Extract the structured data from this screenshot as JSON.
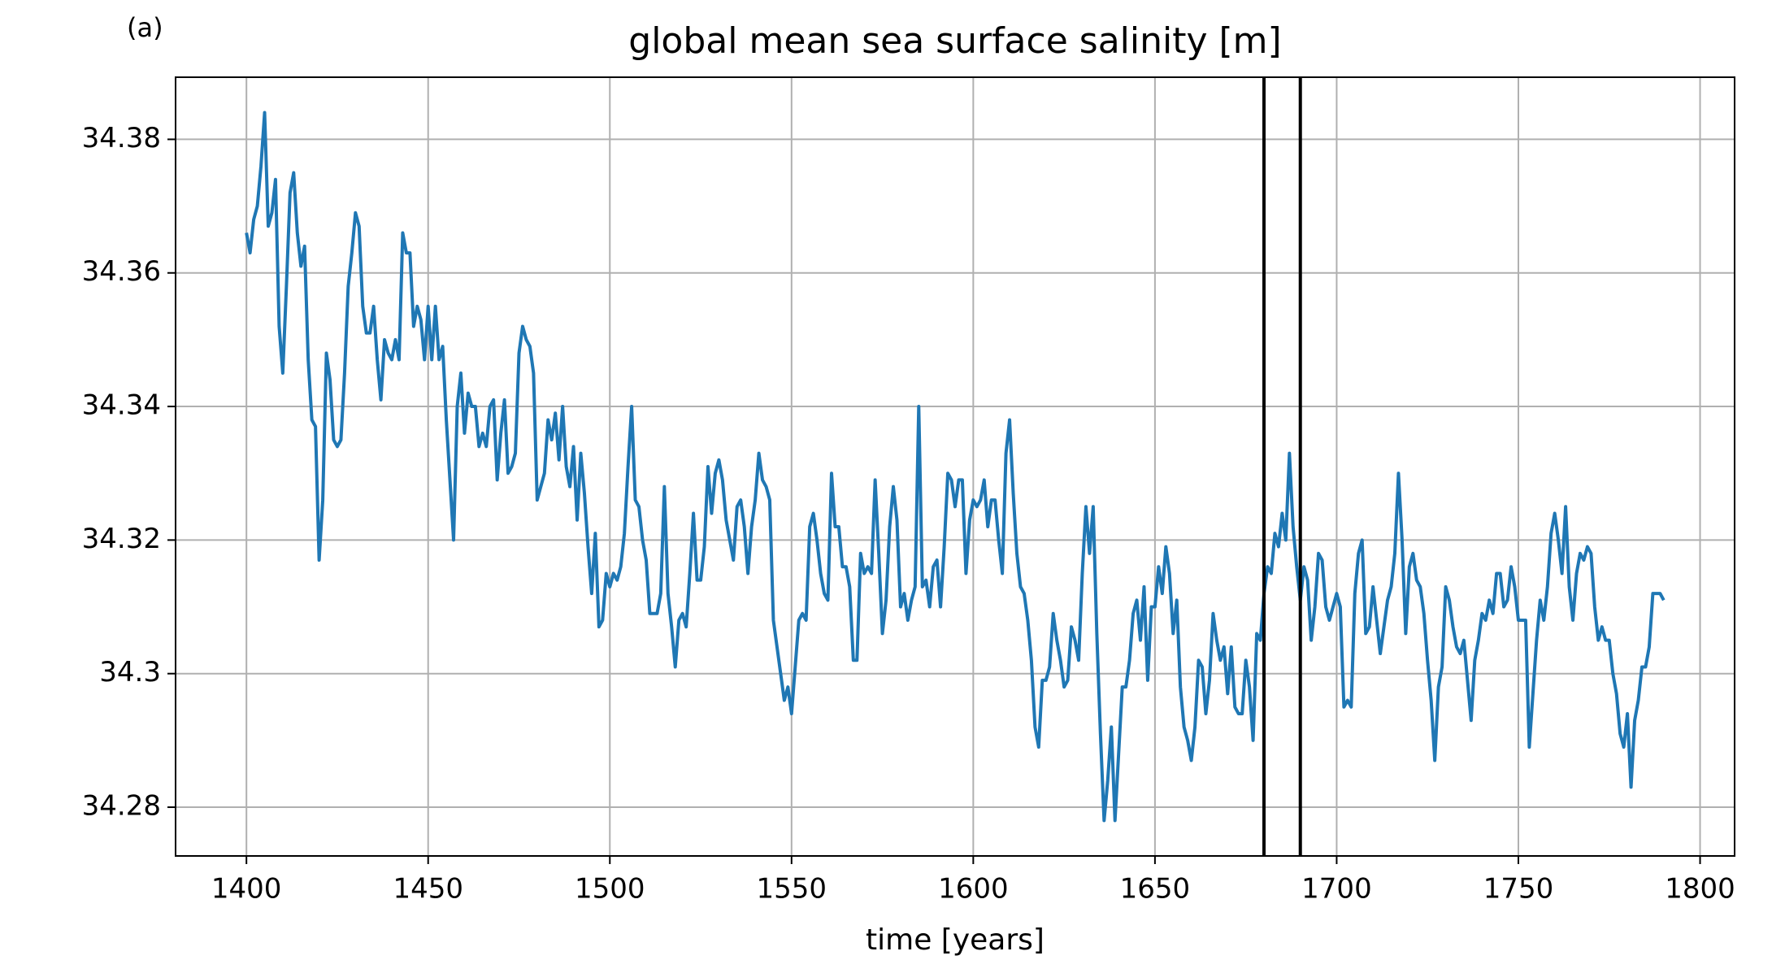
{
  "chart_data": {
    "type": "line",
    "panel_label": "(a)",
    "title": "global mean sea surface salinity [m]",
    "xlabel": "time [years]",
    "xlim": [
      1380.5,
      1809.5
    ],
    "xticks": [
      1400,
      1450,
      1500,
      1550,
      1600,
      1650,
      1700,
      1750,
      1800
    ],
    "ylim": [
      34.2727,
      34.3893
    ],
    "yticks": [
      34.28,
      34.3,
      34.32,
      34.34,
      34.36,
      34.38
    ],
    "grid": true,
    "vlines": [
      1680,
      1690
    ],
    "vline_color": "#000000",
    "x": [
      1400,
      1401,
      1402,
      1403,
      1404,
      1405,
      1406,
      1407,
      1408,
      1409,
      1410,
      1411,
      1412,
      1413,
      1414,
      1415,
      1416,
      1417,
      1418,
      1419,
      1420,
      1421,
      1422,
      1423,
      1424,
      1425,
      1426,
      1427,
      1428,
      1429,
      1430,
      1431,
      1432,
      1433,
      1434,
      1435,
      1436,
      1437,
      1438,
      1439,
      1440,
      1441,
      1442,
      1443,
      1444,
      1445,
      1446,
      1447,
      1448,
      1449,
      1450,
      1451,
      1452,
      1453,
      1454,
      1455,
      1456,
      1457,
      1458,
      1459,
      1460,
      1461,
      1462,
      1463,
      1464,
      1465,
      1466,
      1467,
      1468,
      1469,
      1470,
      1471,
      1472,
      1473,
      1474,
      1475,
      1476,
      1477,
      1478,
      1479,
      1480,
      1481,
      1482,
      1483,
      1484,
      1485,
      1486,
      1487,
      1488,
      1489,
      1490,
      1491,
      1492,
      1493,
      1494,
      1495,
      1496,
      1497,
      1498,
      1499,
      1500,
      1501,
      1502,
      1503,
      1504,
      1505,
      1506,
      1507,
      1508,
      1509,
      1510,
      1511,
      1512,
      1513,
      1514,
      1515,
      1516,
      1517,
      1518,
      1519,
      1520,
      1521,
      1522,
      1523,
      1524,
      1525,
      1526,
      1527,
      1528,
      1529,
      1530,
      1531,
      1532,
      1533,
      1534,
      1535,
      1536,
      1537,
      1538,
      1539,
      1540,
      1541,
      1542,
      1543,
      1544,
      1545,
      1546,
      1547,
      1548,
      1549,
      1550,
      1551,
      1552,
      1553,
      1554,
      1555,
      1556,
      1557,
      1558,
      1559,
      1560,
      1561,
      1562,
      1563,
      1564,
      1565,
      1566,
      1567,
      1568,
      1569,
      1570,
      1571,
      1572,
      1573,
      1574,
      1575,
      1576,
      1577,
      1578,
      1579,
      1580,
      1581,
      1582,
      1583,
      1584,
      1585,
      1586,
      1587,
      1588,
      1589,
      1590,
      1591,
      1592,
      1593,
      1594,
      1595,
      1596,
      1597,
      1598,
      1599,
      1600,
      1601,
      1602,
      1603,
      1604,
      1605,
      1606,
      1607,
      1608,
      1609,
      1610,
      1611,
      1612,
      1613,
      1614,
      1615,
      1616,
      1617,
      1618,
      1619,
      1620,
      1621,
      1622,
      1623,
      1624,
      1625,
      1626,
      1627,
      1628,
      1629,
      1630,
      1631,
      1632,
      1633,
      1634,
      1635,
      1636,
      1637,
      1638,
      1639,
      1640,
      1641,
      1642,
      1643,
      1644,
      1645,
      1646,
      1647,
      1648,
      1649,
      1650,
      1651,
      1652,
      1653,
      1654,
      1655,
      1656,
      1657,
      1658,
      1659,
      1660,
      1661,
      1662,
      1663,
      1664,
      1665,
      1666,
      1667,
      1668,
      1669,
      1670,
      1671,
      1672,
      1673,
      1674,
      1675,
      1676,
      1677,
      1678,
      1679,
      1680,
      1681,
      1682,
      1683,
      1684,
      1685,
      1686,
      1687,
      1688,
      1689,
      1690,
      1691,
      1692,
      1693,
      1694,
      1695,
      1696,
      1697,
      1698,
      1699,
      1700,
      1701,
      1702,
      1703,
      1704,
      1705,
      1706,
      1707,
      1708,
      1709,
      1710,
      1711,
      1712,
      1713,
      1714,
      1715,
      1716,
      1717,
      1718,
      1719,
      1720,
      1721,
      1722,
      1723,
      1724,
      1725,
      1726,
      1727,
      1728,
      1729,
      1730,
      1731,
      1732,
      1733,
      1734,
      1735,
      1736,
      1737,
      1738,
      1739,
      1740,
      1741,
      1742,
      1743,
      1744,
      1745,
      1746,
      1747,
      1748,
      1749,
      1750,
      1751,
      1752,
      1753,
      1754,
      1755,
      1756,
      1757,
      1758,
      1759,
      1760,
      1761,
      1762,
      1763,
      1764,
      1765,
      1766,
      1767,
      1768,
      1769,
      1770,
      1771,
      1772,
      1773,
      1774,
      1775,
      1776,
      1777,
      1778,
      1779,
      1780,
      1781,
      1782,
      1783,
      1784,
      1785,
      1786,
      1787,
      1788,
      1789,
      1790
    ],
    "series": [
      {
        "color": "#1f77b4",
        "values": [
          34.366,
          34.363,
          34.368,
          34.37,
          34.376,
          34.384,
          34.367,
          34.369,
          34.374,
          34.352,
          34.345,
          34.358,
          34.372,
          34.375,
          34.366,
          34.361,
          34.364,
          34.347,
          34.338,
          34.337,
          34.317,
          34.326,
          34.348,
          34.344,
          34.335,
          34.334,
          34.335,
          34.345,
          34.358,
          34.363,
          34.369,
          34.367,
          34.355,
          34.351,
          34.351,
          34.355,
          34.347,
          34.341,
          34.35,
          34.348,
          34.347,
          34.35,
          34.347,
          34.366,
          34.363,
          34.363,
          34.352,
          34.355,
          34.353,
          34.347,
          34.355,
          34.347,
          34.355,
          34.347,
          34.349,
          34.338,
          34.329,
          34.32,
          34.34,
          34.345,
          34.336,
          34.342,
          34.34,
          34.34,
          34.334,
          34.336,
          34.334,
          34.34,
          34.341,
          34.329,
          34.336,
          34.341,
          34.33,
          34.331,
          34.333,
          34.348,
          34.352,
          34.35,
          34.349,
          34.345,
          34.326,
          34.328,
          34.33,
          34.338,
          34.335,
          34.339,
          34.332,
          34.34,
          34.331,
          34.328,
          34.334,
          34.323,
          34.333,
          34.327,
          34.319,
          34.312,
          34.321,
          34.307,
          34.308,
          34.315,
          34.313,
          34.315,
          34.314,
          34.316,
          34.321,
          34.331,
          34.34,
          34.326,
          34.325,
          34.32,
          34.317,
          34.309,
          34.309,
          34.309,
          34.312,
          34.328,
          34.312,
          34.307,
          34.301,
          34.308,
          34.309,
          34.307,
          34.315,
          34.324,
          34.314,
          34.314,
          34.319,
          34.331,
          34.324,
          34.33,
          34.332,
          34.329,
          34.323,
          34.32,
          34.317,
          34.325,
          34.326,
          34.322,
          34.315,
          34.322,
          34.326,
          34.333,
          34.329,
          34.328,
          34.326,
          34.308,
          34.304,
          34.3,
          34.296,
          34.298,
          34.294,
          34.301,
          34.308,
          34.309,
          34.308,
          34.322,
          34.324,
          34.32,
          34.315,
          34.312,
          34.311,
          34.33,
          34.322,
          34.322,
          34.316,
          34.316,
          34.313,
          34.302,
          34.302,
          34.318,
          34.315,
          34.316,
          34.315,
          34.329,
          34.318,
          34.306,
          34.311,
          34.322,
          34.328,
          34.323,
          34.31,
          34.312,
          34.308,
          34.311,
          34.313,
          34.34,
          34.313,
          34.314,
          34.31,
          34.316,
          34.317,
          34.31,
          34.319,
          34.33,
          34.329,
          34.325,
          34.329,
          34.329,
          34.315,
          34.323,
          34.326,
          34.325,
          34.326,
          34.329,
          34.322,
          34.326,
          34.326,
          34.32,
          34.315,
          34.333,
          34.338,
          34.327,
          34.318,
          34.313,
          34.312,
          34.308,
          34.302,
          34.292,
          34.289,
          34.299,
          34.299,
          34.301,
          34.309,
          34.305,
          34.302,
          34.298,
          34.299,
          34.307,
          34.305,
          34.302,
          34.315,
          34.325,
          34.318,
          34.325,
          34.306,
          34.291,
          34.278,
          34.284,
          34.292,
          34.278,
          34.288,
          34.298,
          34.298,
          34.302,
          34.309,
          34.311,
          34.305,
          34.313,
          34.299,
          34.31,
          34.31,
          34.316,
          34.312,
          34.319,
          34.315,
          34.306,
          34.311,
          34.298,
          34.292,
          34.29,
          34.287,
          34.292,
          34.302,
          34.301,
          34.294,
          34.299,
          34.309,
          34.305,
          34.302,
          34.304,
          34.297,
          34.304,
          34.295,
          34.294,
          34.294,
          34.302,
          34.298,
          34.29,
          34.306,
          34.305,
          34.312,
          34.316,
          34.315,
          34.321,
          34.319,
          34.324,
          34.32,
          34.333,
          34.322,
          34.316,
          34.311,
          34.316,
          34.314,
          34.305,
          34.31,
          34.318,
          34.317,
          34.31,
          34.308,
          34.31,
          34.312,
          34.31,
          34.295,
          34.296,
          34.295,
          34.312,
          34.318,
          34.32,
          34.306,
          34.307,
          34.313,
          34.308,
          34.303,
          34.307,
          34.311,
          34.313,
          34.318,
          34.33,
          34.32,
          34.306,
          34.316,
          34.318,
          34.314,
          34.313,
          34.309,
          34.302,
          34.296,
          34.287,
          34.298,
          34.301,
          34.313,
          34.311,
          34.307,
          34.304,
          34.303,
          34.305,
          34.299,
          34.293,
          34.302,
          34.305,
          34.309,
          34.308,
          34.311,
          34.309,
          34.315,
          34.315,
          34.31,
          34.311,
          34.316,
          34.313,
          34.308,
          34.308,
          34.308,
          34.289,
          34.297,
          34.305,
          34.311,
          34.308,
          34.313,
          34.321,
          34.324,
          34.32,
          34.315,
          34.325,
          34.313,
          34.308,
          34.315,
          34.318,
          34.317,
          34.319,
          34.318,
          34.31,
          34.305,
          34.307,
          34.305,
          34.305,
          34.3,
          34.297,
          34.291,
          34.289,
          34.294,
          34.283,
          34.293,
          34.296,
          34.301,
          34.301,
          34.304,
          34.312,
          34.312,
          34.312,
          34.311
        ]
      }
    ]
  }
}
